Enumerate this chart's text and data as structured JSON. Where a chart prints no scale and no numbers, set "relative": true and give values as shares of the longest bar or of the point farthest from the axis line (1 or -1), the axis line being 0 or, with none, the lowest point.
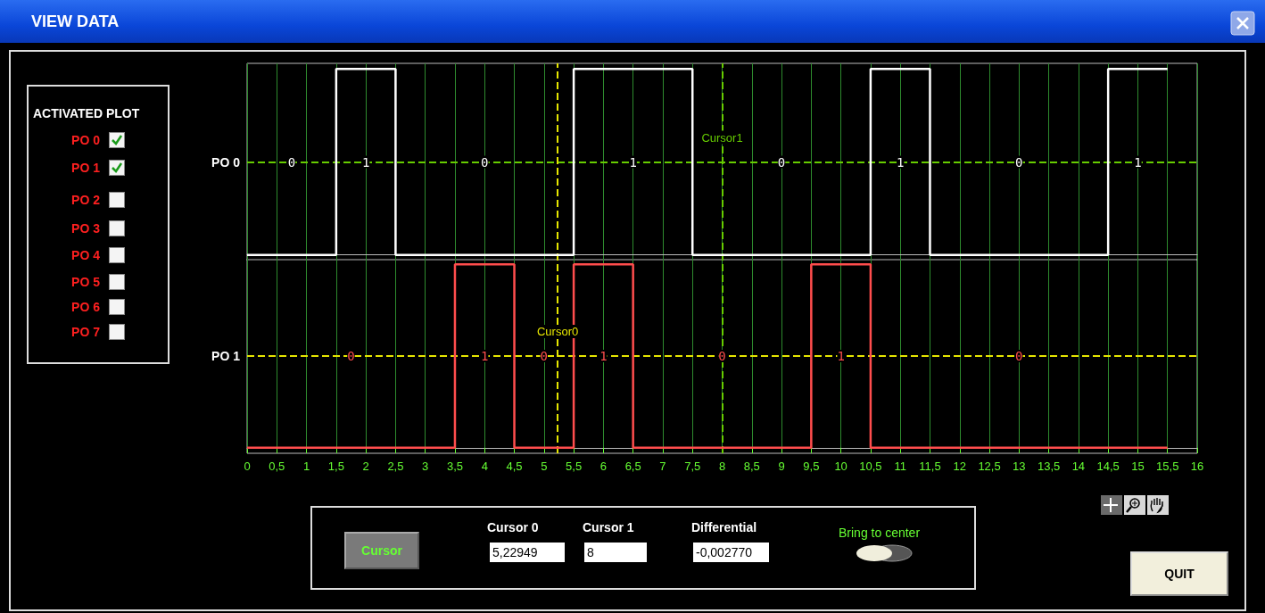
{
  "chart_data": [
    {
      "type": "step",
      "relative": true,
      "x": [
        0,
        1.5,
        2.5,
        5.5,
        7.5,
        10.5,
        11.5,
        14.5,
        15.5
      ],
      "series": [
        {
          "color": "#ffffff",
          "values": [
            0,
            1,
            0,
            1,
            0,
            1,
            0,
            1,
            1
          ]
        }
      ],
      "xlim": [
        0,
        16
      ],
      "xticks": [
        0,
        0.5,
        1,
        1.5,
        2,
        2.5,
        3,
        3.5,
        4,
        4.5,
        5,
        5.5,
        6,
        6.5,
        7,
        7.5,
        8,
        8.5,
        9,
        9.5,
        10,
        10.5,
        11,
        11.5,
        12,
        12.5,
        13,
        13.5,
        14,
        14.5,
        15,
        15.5,
        16
      ],
      "grid": "x",
      "tick_labels": false,
      "ref_lines": [
        {
          "axis": "y",
          "value": 0.5,
          "color": "#66cc00",
          "line_style": "dashed"
        },
        {
          "axis": "x",
          "value": 5.22949,
          "color": "#e6e600",
          "line_style": "dashed"
        },
        {
          "axis": "x",
          "value": 8,
          "label": "Cursor1",
          "color": "#66cc00",
          "line_style": "dashed"
        }
      ],
      "annotations": [
        "PO 0",
        "VIEW DATA",
        "ACTIVATED PLOT",
        "PO 0",
        "PO 1",
        "PO 2",
        "PO 3",
        "PO 4",
        "PO 5",
        "PO 6",
        "PO 7",
        {
          "text": "0",
          "x": 0.75,
          "y": 0.5
        },
        {
          "text": "1",
          "x": 2,
          "y": 0.5
        },
        {
          "text": "0",
          "x": 4,
          "y": 0.5
        },
        {
          "text": "1",
          "x": 6.5,
          "y": 0.5
        },
        {
          "text": "0",
          "x": 9,
          "y": 0.5
        },
        {
          "text": "1",
          "x": 11,
          "y": 0.5
        },
        {
          "text": "0",
          "x": 13,
          "y": 0.5
        },
        {
          "text": "1",
          "x": 15,
          "y": 0.5
        }
      ]
    },
    {
      "type": "step",
      "relative": true,
      "x": [
        0,
        3.5,
        4.5,
        5.5,
        6.5,
        9.5,
        10.5,
        15.5
      ],
      "series": [
        {
          "color": "#ff4d4d",
          "values": [
            0,
            1,
            0,
            1,
            0,
            1,
            0,
            0
          ]
        }
      ],
      "xlim": [
        0,
        16
      ],
      "xticks": [
        0,
        {
          "value": 0.5,
          "label": "0,5"
        },
        1,
        {
          "value": 1.5,
          "label": "1,5"
        },
        2,
        {
          "value": 2.5,
          "label": "2,5"
        },
        3,
        {
          "value": 3.5,
          "label": "3,5"
        },
        4,
        {
          "value": 4.5,
          "label": "4,5"
        },
        5,
        {
          "value": 5.5,
          "label": "5,5"
        },
        6,
        {
          "value": 6.5,
          "label": "6,5"
        },
        7,
        {
          "value": 7.5,
          "label": "7,5"
        },
        8,
        {
          "value": 8.5,
          "label": "8,5"
        },
        9,
        {
          "value": 9.5,
          "label": "9,5"
        },
        10,
        {
          "value": 10.5,
          "label": "10,5"
        },
        11,
        {
          "value": 11.5,
          "label": "11,5"
        },
        12,
        {
          "value": 12.5,
          "label": "12,5"
        },
        13,
        {
          "value": 13.5,
          "label": "13,5"
        },
        14,
        {
          "value": 14.5,
          "label": "14,5"
        },
        15,
        {
          "value": 15.5,
          "label": "15,5"
        },
        16
      ],
      "grid": "x",
      "tick_labels": "x",
      "ref_lines": [
        {
          "axis": "y",
          "value": 0.5,
          "color": "#e6e600",
          "line_style": "dashed"
        },
        {
          "axis": "x",
          "value": 5.22949,
          "label": "Cursor0",
          "color": "#e6e600",
          "line_style": "dashed"
        },
        {
          "axis": "x",
          "value": 8,
          "color": "#66cc00",
          "line_style": "dashed"
        }
      ],
      "annotations": [
        "PO 1",
        "Cursor",
        "Cursor 0",
        "5,22949",
        "Cursor 1",
        "8",
        "Differential",
        "-0,002770",
        "Bring to center",
        "QUIT",
        {
          "text": "0",
          "x": 1.75,
          "y": 0.5
        },
        {
          "text": "1",
          "x": 4,
          "y": 0.5
        },
        {
          "text": "0",
          "x": 5,
          "y": 0.5
        },
        {
          "text": "1",
          "x": 6,
          "y": 0.5
        },
        {
          "text": "0",
          "x": 8,
          "y": 0.5
        },
        {
          "text": "1",
          "x": 10,
          "y": 0.5
        },
        {
          "text": "0",
          "x": 13,
          "y": 0.5
        }
      ]
    }
  ]
}
